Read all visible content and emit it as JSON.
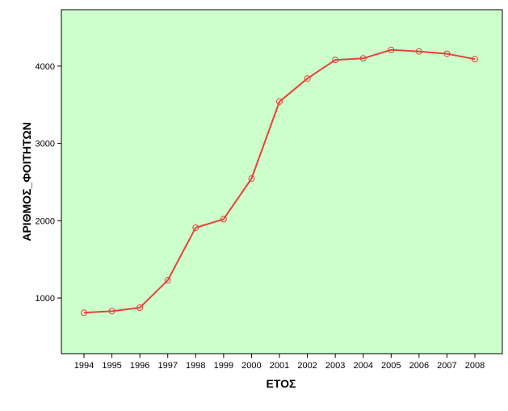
{
  "chart_data": {
    "type": "line",
    "x_label": "ΕΤΟΣ",
    "y_label": "ΑΡΙΘΜΟΣ_ΦΟΙΤΗΤΩΝ",
    "categories": [
      "1994",
      "1995",
      "1996",
      "1997",
      "1998",
      "1999",
      "2000",
      "2001",
      "2002",
      "2003",
      "2004",
      "2005",
      "2006",
      "2007",
      "2008"
    ],
    "values": [
      810,
      830,
      875,
      1230,
      1910,
      2020,
      2545,
      3540,
      3840,
      4080,
      4100,
      4210,
      4190,
      4160,
      4090
    ],
    "color": "#e8403a",
    "ylim": [
      280,
      4730
    ],
    "yticks": [
      1000,
      2000,
      3000,
      4000
    ]
  }
}
